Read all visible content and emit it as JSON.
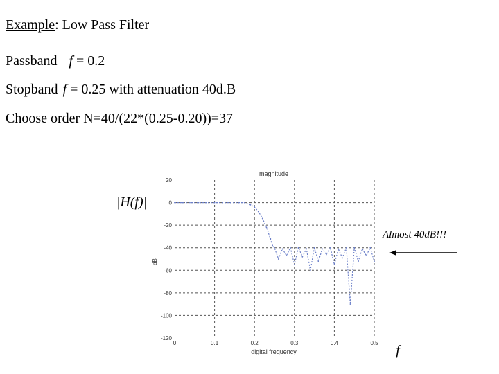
{
  "slide": {
    "title_underlined": "Example",
    "title_rest": ": Low Pass Filter",
    "passband_label": "Passband",
    "passband_f": "f",
    "passband_value": "= 0.2",
    "stopband_label": "Stopband",
    "stopband_f": "f",
    "stopband_value": "= 0.25  with attenuation 40d.B",
    "order_line": "Choose order N=40/(22*(0.25-0.20))=37",
    "annotation": "Almost 40dB!!!",
    "axis_symbol_f": "f"
  },
  "chart_data": {
    "type": "line",
    "title": "magnitude",
    "xlabel": "digital frequency",
    "ylabel_formula": "|H(f)|",
    "ylabel_unit": "dB",
    "xlim": [
      0,
      0.5
    ],
    "ylim": [
      -120,
      20
    ],
    "xticks": [
      "0",
      "0.1",
      "0.2",
      "0.3",
      "0.4",
      "0.5"
    ],
    "yticks": [
      "20",
      "0",
      "-20",
      "-40",
      "-60",
      "-80",
      "-100",
      "-120"
    ],
    "grid": true,
    "series": [
      {
        "color": "#6b7fc8",
        "x": [
          0.0,
          0.02,
          0.04,
          0.06,
          0.08,
          0.1,
          0.12,
          0.14,
          0.16,
          0.175,
          0.19,
          0.2,
          0.21,
          0.22,
          0.23,
          0.24,
          0.245,
          0.25,
          0.26,
          0.27,
          0.28,
          0.29,
          0.3,
          0.31,
          0.32,
          0.33,
          0.34,
          0.35,
          0.36,
          0.37,
          0.38,
          0.39,
          0.4,
          0.41,
          0.42,
          0.43,
          0.44,
          0.45,
          0.46,
          0.47,
          0.48,
          0.49,
          0.5
        ],
        "y": [
          0,
          0,
          0,
          0,
          0,
          0,
          0,
          0,
          0,
          0,
          -2,
          -4,
          -8,
          -14,
          -22,
          -32,
          -38,
          -40,
          -50,
          -41,
          -47,
          -40,
          -55,
          -40,
          -48,
          -41,
          -60,
          -40,
          -52,
          -41,
          -46,
          -40,
          -55,
          -41,
          -49,
          -40,
          -90,
          -40,
          -52,
          -41,
          -47,
          -40,
          -52
        ]
      }
    ],
    "annotations": [
      "Almost 40dB!!!"
    ]
  }
}
